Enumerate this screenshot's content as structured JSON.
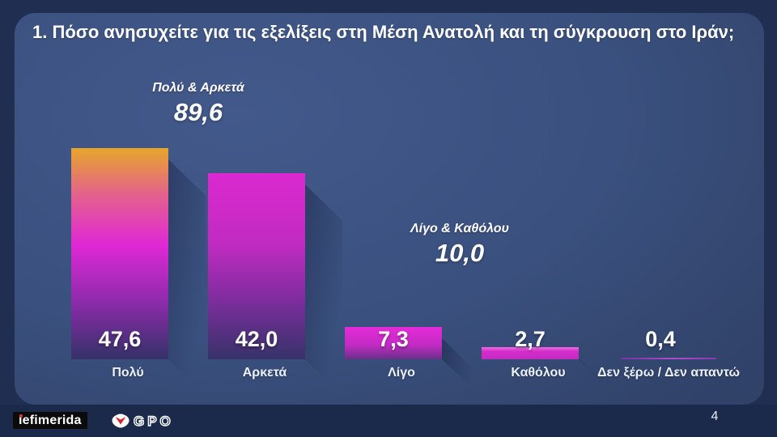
{
  "slide": {
    "title": "1. Πόσο ανησυχείτε για τις εξελίξεις στη Μέση Ανατολή και τη σύγκρουση στο Ιράν;",
    "page_number": "4"
  },
  "chart_data": {
    "type": "bar",
    "title": "Πόσο ανησυχείτε για τις εξελίξεις στη Μέση Ανατολή και τη σύγκρουση στο Ιράν;",
    "categories": [
      "Πολύ",
      "Αρκετά",
      "Λίγο",
      "Καθόλου",
      "Δεν ξέρω / Δεν απαντώ"
    ],
    "values": [
      47.6,
      42.0,
      7.3,
      2.7,
      0.4
    ],
    "value_labels": [
      "47,6",
      "42,0",
      "7,3",
      "2,7",
      "0,4"
    ],
    "ylim": [
      0,
      50
    ],
    "grid": false,
    "legend": false,
    "annotations": [
      {
        "label": "Πολύ & Αρκετά",
        "value_label": "89,6",
        "value": 89.6
      },
      {
        "label": "Λίγο & Καθόλου",
        "value_label": "10,0",
        "value": 10.0
      }
    ],
    "bar_palette": [
      "orange-to-purple-gradient",
      "magenta-to-purple-gradient",
      "magenta-gradient",
      "magenta",
      "purple-line"
    ]
  },
  "colors": {
    "stage_background": "#1F2E51",
    "panel_gradient_center": "#42598B",
    "panel_gradient_edge": "#2C3C5F",
    "footer_background": "#1B2A4A",
    "bar_top_orange": "#E7A62A",
    "bar_magenta": "#DF28D5",
    "bar_bottom_purple": "#343168",
    "text": "#FFFFFF",
    "logo_red": "#E03A2F"
  },
  "footer": {
    "iefimerida_text": "iefimerida",
    "gpo_text": "GPO"
  }
}
